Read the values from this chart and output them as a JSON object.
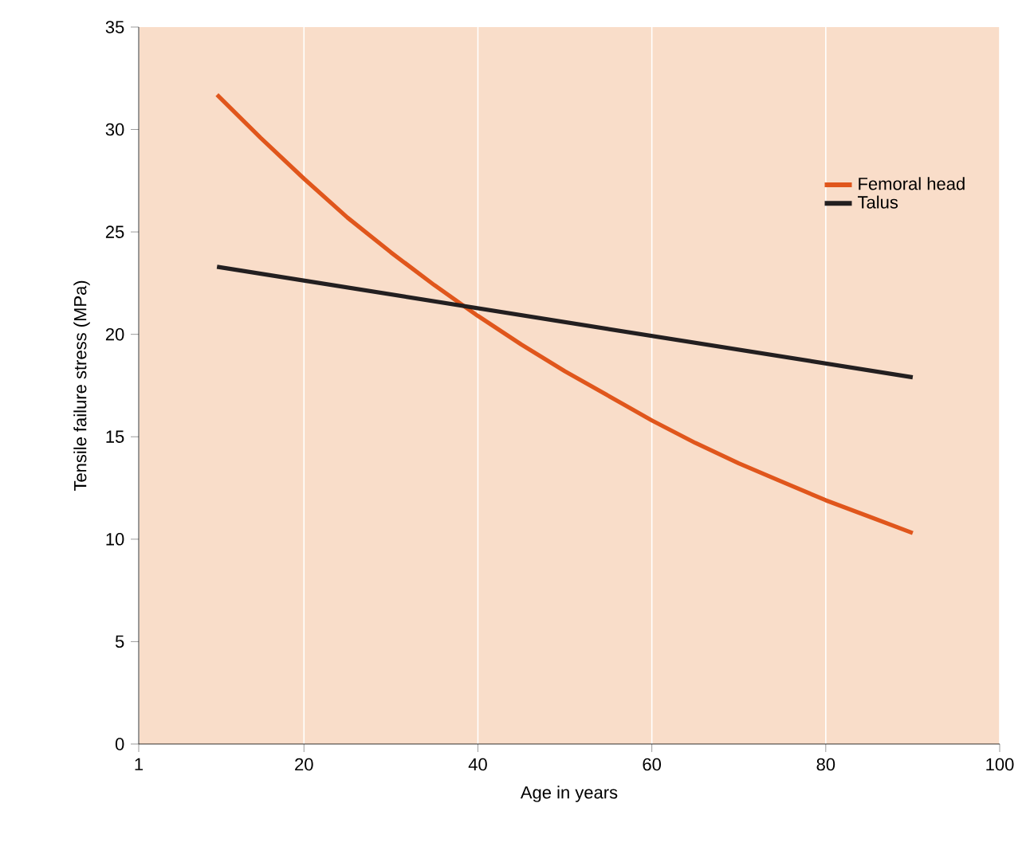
{
  "chart_data": {
    "type": "line",
    "xlabel": "Age in years",
    "ylabel": "Tensile failure stress (MPa)",
    "xlim": [
      1,
      100
    ],
    "ylim": [
      0,
      35
    ],
    "xticks": [
      1,
      20,
      40,
      60,
      80,
      100
    ],
    "yticks": [
      0,
      5,
      10,
      15,
      20,
      25,
      30,
      35
    ],
    "grid": "x",
    "legend": "top right",
    "marker": "none",
    "line_style": "solid",
    "series": [
      {
        "name": "Femoral head",
        "color": "#e0561c",
        "x": [
          10,
          15,
          20,
          25,
          30,
          35,
          40,
          45,
          50,
          55,
          60,
          65,
          70,
          75,
          80,
          85,
          90
        ],
        "values": [
          31.7,
          29.6,
          27.6,
          25.7,
          24.0,
          22.4,
          20.9,
          19.5,
          18.2,
          17.0,
          15.8,
          14.7,
          13.7,
          12.8,
          11.9,
          11.1,
          10.3
        ]
      },
      {
        "name": "Talus",
        "color": "#231f20",
        "x": [
          10,
          90
        ],
        "values": [
          23.3,
          17.9
        ]
      }
    ]
  }
}
